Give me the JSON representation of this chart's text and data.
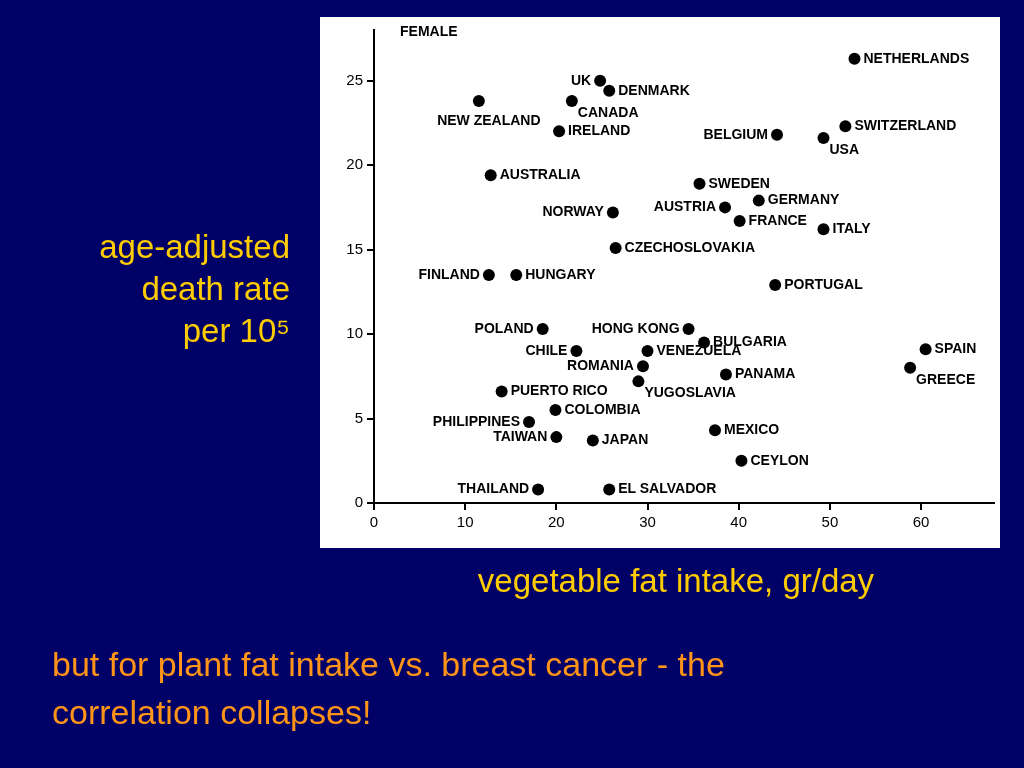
{
  "chart_data": {
    "type": "scatter",
    "xlabel": "vegetable fat intake, gr/day",
    "ylabel": "age-adjusted death rate per 10⁵",
    "annotations": [
      "FEMALE",
      "but for plant fat intake vs. breast cancer - the correlation collapses!"
    ],
    "xlim": [
      0,
      68
    ],
    "ylim": [
      0,
      28
    ],
    "xticks": [
      0,
      10,
      20,
      30,
      40,
      50,
      60
    ],
    "yticks": [
      0,
      5,
      10,
      15,
      20,
      25
    ],
    "marker": "circle",
    "series": [
      {
        "name": "UK",
        "color": "#000000",
        "x": [
          24.8
        ],
        "values": [
          25.0
        ]
      },
      {
        "name": "DENMARK",
        "color": "#000000",
        "x": [
          25.8
        ],
        "values": [
          24.4
        ]
      },
      {
        "name": "NEW ZEALAND",
        "color": "#000000",
        "x": [
          11.5
        ],
        "values": [
          23.8
        ]
      },
      {
        "name": "CANADA",
        "color": "#000000",
        "x": [
          21.7
        ],
        "values": [
          23.8
        ]
      },
      {
        "name": "IRELAND",
        "color": "#000000",
        "x": [
          20.3
        ],
        "values": [
          22.0
        ]
      },
      {
        "name": "NETHERLANDS",
        "color": "#000000",
        "x": [
          52.7
        ],
        "values": [
          26.3
        ]
      },
      {
        "name": "SWITZERLAND",
        "color": "#000000",
        "x": [
          51.7
        ],
        "values": [
          22.3
        ]
      },
      {
        "name": "BELGIUM",
        "color": "#000000",
        "x": [
          44.2
        ],
        "values": [
          21.8
        ]
      },
      {
        "name": "USA",
        "color": "#000000",
        "x": [
          49.3
        ],
        "values": [
          21.6
        ]
      },
      {
        "name": "AUSTRALIA",
        "color": "#000000",
        "x": [
          12.8
        ],
        "values": [
          19.4
        ]
      },
      {
        "name": "SWEDEN",
        "color": "#000000",
        "x": [
          35.7
        ],
        "values": [
          18.9
        ]
      },
      {
        "name": "GERMANY",
        "color": "#000000",
        "x": [
          42.2
        ],
        "values": [
          17.9
        ]
      },
      {
        "name": "AUSTRIA",
        "color": "#000000",
        "x": [
          38.5
        ],
        "values": [
          17.5
        ]
      },
      {
        "name": "NORWAY",
        "color": "#000000",
        "x": [
          26.2
        ],
        "values": [
          17.2
        ]
      },
      {
        "name": "FRANCE",
        "color": "#000000",
        "x": [
          40.1
        ],
        "values": [
          16.7
        ]
      },
      {
        "name": "ITALY",
        "color": "#000000",
        "x": [
          49.3
        ],
        "values": [
          16.2
        ]
      },
      {
        "name": "CZECHOSLOVAKIA",
        "color": "#000000",
        "x": [
          26.5
        ],
        "values": [
          15.1
        ]
      },
      {
        "name": "FINLAND",
        "color": "#000000",
        "x": [
          12.6
        ],
        "values": [
          13.5
        ]
      },
      {
        "name": "HUNGARY",
        "color": "#000000",
        "x": [
          15.6
        ],
        "values": [
          13.5
        ]
      },
      {
        "name": "PORTUGAL",
        "color": "#000000",
        "x": [
          44.0
        ],
        "values": [
          12.9
        ]
      },
      {
        "name": "POLAND",
        "color": "#000000",
        "x": [
          18.5
        ],
        "values": [
          10.3
        ]
      },
      {
        "name": "HONG KONG",
        "color": "#000000",
        "x": [
          34.5
        ],
        "values": [
          10.3
        ]
      },
      {
        "name": "BULGARIA",
        "color": "#000000",
        "x": [
          36.2
        ],
        "values": [
          9.5
        ]
      },
      {
        "name": "CHILE",
        "color": "#000000",
        "x": [
          22.2
        ],
        "values": [
          9.0
        ]
      },
      {
        "name": "VENEZUELA",
        "color": "#000000",
        "x": [
          30.0
        ],
        "values": [
          9.0
        ]
      },
      {
        "name": "SPAIN",
        "color": "#000000",
        "x": [
          60.5
        ],
        "values": [
          9.1
        ]
      },
      {
        "name": "ROMANIA",
        "color": "#000000",
        "x": [
          29.5
        ],
        "values": [
          8.1
        ]
      },
      {
        "name": "GREECE",
        "color": "#000000",
        "x": [
          58.8
        ],
        "values": [
          8.0
        ]
      },
      {
        "name": "PANAMA",
        "color": "#000000",
        "x": [
          38.6
        ],
        "values": [
          7.6
        ]
      },
      {
        "name": "YUGOSLAVIA",
        "color": "#000000",
        "x": [
          29.0
        ],
        "values": [
          7.2
        ]
      },
      {
        "name": "PUERTO RICO",
        "color": "#000000",
        "x": [
          14.0
        ],
        "values": [
          6.6
        ]
      },
      {
        "name": "COLOMBIA",
        "color": "#000000",
        "x": [
          19.9
        ],
        "values": [
          5.5
        ]
      },
      {
        "name": "PHILIPPINES",
        "color": "#000000",
        "x": [
          17.0
        ],
        "values": [
          4.8
        ]
      },
      {
        "name": "MEXICO",
        "color": "#000000",
        "x": [
          37.4
        ],
        "values": [
          4.3
        ]
      },
      {
        "name": "TAIWAN",
        "color": "#000000",
        "x": [
          20.0
        ],
        "values": [
          3.9
        ]
      },
      {
        "name": "JAPAN",
        "color": "#000000",
        "x": [
          24.0
        ],
        "values": [
          3.7
        ]
      },
      {
        "name": "CEYLON",
        "color": "#000000",
        "x": [
          40.3
        ],
        "values": [
          2.5
        ]
      },
      {
        "name": "THAILAND",
        "color": "#000000",
        "x": [
          18.0
        ],
        "values": [
          0.8
        ]
      },
      {
        "name": "EL SALVADOR",
        "color": "#000000",
        "x": [
          25.8
        ],
        "values": [
          0.8
        ]
      }
    ]
  }
}
